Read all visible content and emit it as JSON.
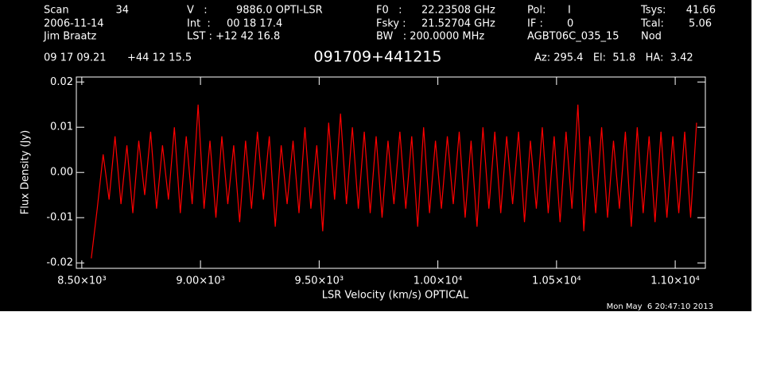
{
  "header": {
    "scan_label": "Scan",
    "scan": "34",
    "date": "2006-11-14",
    "observer": "Jim Braatz",
    "v_label": "V   :",
    "v": "9886.0 OPTI-LSR",
    "int_label": "Int  :",
    "int": "00 18 17.4",
    "lst": "LST : +12 42 16.8",
    "f0_label": "F0   :",
    "f0": "22.23508 GHz",
    "fsky_label": "Fsky :",
    "fsky": "21.52704 GHz",
    "bw": "BW   : 200.0000 MHz",
    "pol_label": "Pol:",
    "pol": "I",
    "if_label": "IF :",
    "if": "0",
    "project": "AGBT06C_035_15",
    "tsys_label": "Tsys:",
    "tsys": "41.66",
    "tcal_label": "Tcal:",
    "tcal": "5.06",
    "mode": "Nod",
    "ra": "09 17 09.21",
    "dec": "+44 12 15.5",
    "azelha": "Az: 295.4   El:  51.8   HA:  3.42",
    "timestamp": "Mon May  6 20:47:10 2013"
  },
  "chart_data": {
    "type": "line",
    "title": "091709+441215",
    "x_label": "LSR Velocity (km/s) OPTICAL",
    "y_label": "Flux Density (Jy)",
    "color": "#ff0000",
    "grid": false,
    "xlim": [
      8477,
      11127
    ],
    "ylim": [
      -0.0212,
      0.0211
    ],
    "xticks": [
      {
        "value": 8500,
        "label": "8.50×10³"
      },
      {
        "value": 9000,
        "label": "9.00×10³"
      },
      {
        "value": 9500,
        "label": "9.50×10³"
      },
      {
        "value": 10000,
        "label": "1.00×10⁴"
      },
      {
        "value": 10500,
        "label": "1.05×10⁴"
      },
      {
        "value": 11000,
        "label": "1.10×10⁴"
      }
    ],
    "yticks": [
      0.02,
      0.01,
      {
        "value": 0,
        "label": "0.00"
      },
      -0.01,
      -0.02
    ],
    "x": [
      8540,
      8565,
      8590,
      8615,
      8640,
      8665,
      8690,
      8715,
      8740,
      8765,
      8790,
      8815,
      8840,
      8865,
      8890,
      8915,
      8940,
      8965,
      8990,
      9015,
      9040,
      9065,
      9090,
      9115,
      9140,
      9165,
      9190,
      9215,
      9240,
      9265,
      9290,
      9315,
      9340,
      9365,
      9390,
      9415,
      9440,
      9465,
      9490,
      9515,
      9540,
      9565,
      9590,
      9615,
      9640,
      9665,
      9690,
      9715,
      9740,
      9765,
      9790,
      9815,
      9840,
      9865,
      9890,
      9915,
      9940,
      9965,
      9990,
      10015,
      10040,
      10065,
      10090,
      10115,
      10140,
      10165,
      10190,
      10215,
      10240,
      10265,
      10290,
      10315,
      10340,
      10365,
      10390,
      10415,
      10440,
      10465,
      10490,
      10515,
      10540,
      10565,
      10590,
      10615,
      10640,
      10665,
      10690,
      10715,
      10740,
      10765,
      10790,
      10815,
      10840,
      10865,
      10890,
      10915,
      10940,
      10965,
      10990,
      11015,
      11040,
      11065,
      11090
    ],
    "values": [
      -0.019,
      -0.008,
      0.004,
      -0.006,
      0.008,
      -0.007,
      0.006,
      -0.009,
      0.007,
      -0.005,
      0.009,
      -0.008,
      0.006,
      -0.006,
      0.01,
      -0.009,
      0.008,
      -0.007,
      0.015,
      -0.008,
      0.007,
      -0.01,
      0.008,
      -0.007,
      0.006,
      -0.011,
      0.007,
      -0.008,
      0.009,
      -0.006,
      0.008,
      -0.012,
      0.006,
      -0.007,
      0.007,
      -0.009,
      0.01,
      -0.008,
      0.006,
      -0.013,
      0.011,
      -0.006,
      0.013,
      -0.007,
      0.01,
      -0.008,
      0.009,
      -0.009,
      0.008,
      -0.01,
      0.007,
      -0.007,
      0.009,
      -0.008,
      0.008,
      -0.012,
      0.01,
      -0.009,
      0.007,
      -0.008,
      0.008,
      -0.007,
      0.009,
      -0.01,
      0.007,
      -0.012,
      0.01,
      -0.008,
      0.009,
      -0.009,
      0.008,
      -0.007,
      0.009,
      -0.011,
      0.007,
      -0.008,
      0.01,
      -0.009,
      0.008,
      -0.011,
      0.009,
      -0.008,
      0.015,
      -0.013,
      0.008,
      -0.009,
      0.01,
      -0.01,
      0.007,
      -0.008,
      0.009,
      -0.012,
      0.01,
      -0.009,
      0.008,
      -0.011,
      0.009,
      -0.01,
      0.008,
      -0.009,
      0.009,
      -0.01,
      0.011
    ]
  }
}
